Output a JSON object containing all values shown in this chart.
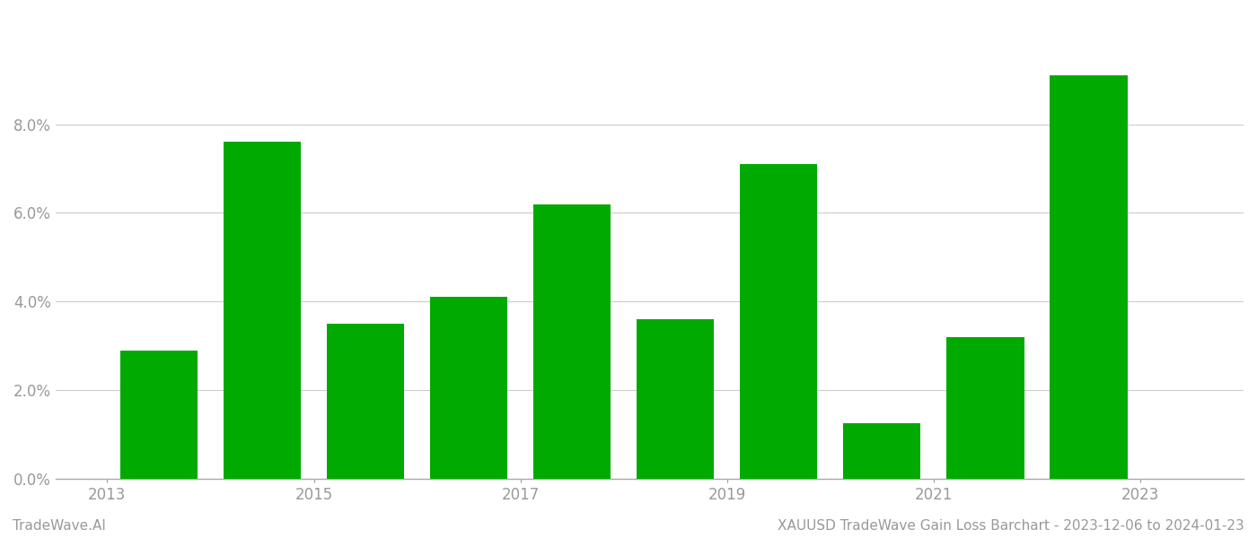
{
  "years": [
    2013,
    2014,
    2015,
    2016,
    2017,
    2018,
    2019,
    2020,
    2021,
    2022
  ],
  "values": [
    0.029,
    0.076,
    0.035,
    0.041,
    0.062,
    0.036,
    0.071,
    0.0125,
    0.032,
    0.091
  ],
  "bar_color": "#00aa00",
  "background_color": "#ffffff",
  "grid_color": "#cccccc",
  "axis_color": "#aaaaaa",
  "tick_label_color": "#999999",
  "ylim": [
    0,
    0.105
  ],
  "yticks": [
    0.0,
    0.02,
    0.04,
    0.06,
    0.08
  ],
  "xtick_positions": [
    2012.5,
    2014.5,
    2016.5,
    2018.5,
    2020.5,
    2022.5
  ],
  "xtick_labels": [
    "2013",
    "2015",
    "2017",
    "2019",
    "2021",
    "2023"
  ],
  "xlim": [
    2012.0,
    2023.5
  ],
  "bar_width": 0.75,
  "footer_left": "TradeWave.AI",
  "footer_right": "XAUUSD TradeWave Gain Loss Barchart - 2023-12-06 to 2024-01-23",
  "footer_color": "#999999",
  "footer_fontsize": 11,
  "tick_label_fontsize": 12
}
